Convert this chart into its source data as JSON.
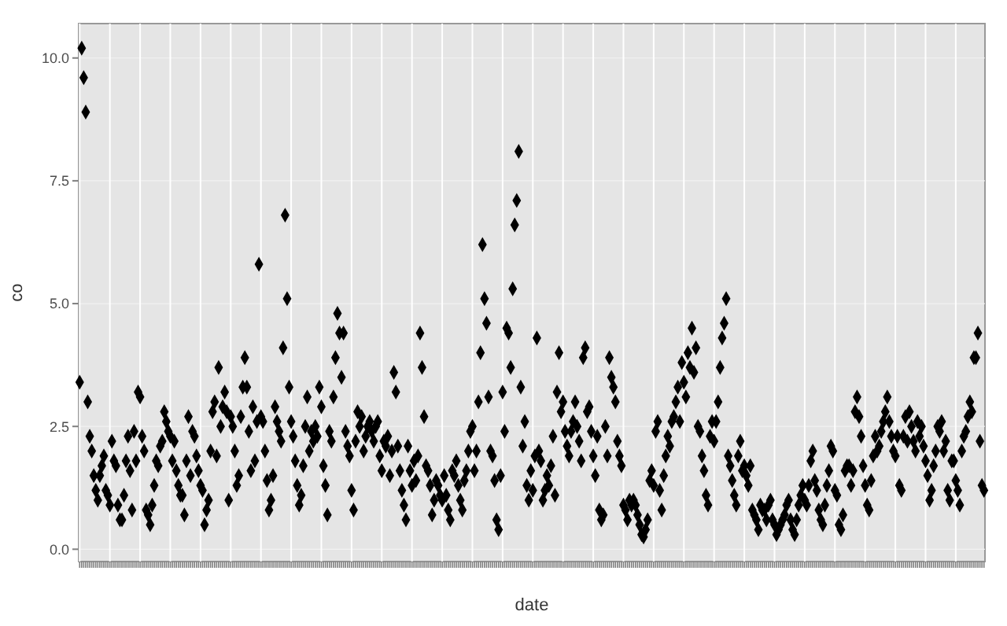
{
  "chart_data": {
    "type": "scatter",
    "xlabel": "date",
    "ylabel": "co",
    "color": "#000000",
    "marker": "diamond",
    "grid": true,
    "tick_labels": "y",
    "ylim": [
      -0.25,
      10.7
    ],
    "yticks": [
      {
        "value": 0,
        "label": "0.0"
      },
      {
        "value": 2.5,
        "label": "2.5"
      },
      {
        "value": 5,
        "label": "5.0"
      },
      {
        "value": 7.5,
        "label": "7.5"
      },
      {
        "value": 10,
        "label": "10.0"
      }
    ],
    "values": [
      3.4,
      10.2,
      9.6,
      8.9,
      3.0,
      2.3,
      2.0,
      1.5,
      1.2,
      1.0,
      1.5,
      1.7,
      1.9,
      1.2,
      1.1,
      0.9,
      2.2,
      1.8,
      1.7,
      0.9,
      0.6,
      0.6,
      1.1,
      1.8,
      2.3,
      1.6,
      0.8,
      2.4,
      1.8,
      3.2,
      3.1,
      2.3,
      2.0,
      0.8,
      0.7,
      0.5,
      0.9,
      1.3,
      1.8,
      1.7,
      2.1,
      2.2,
      2.8,
      2.6,
      2.4,
      2.3,
      1.8,
      2.2,
      1.6,
      1.3,
      1.1,
      1.1,
      0.7,
      1.8,
      2.7,
      1.5,
      2.4,
      2.3,
      1.9,
      1.6,
      1.3,
      1.2,
      0.5,
      0.8,
      1.0,
      2.0,
      2.8,
      3.0,
      1.9,
      3.7,
      2.5,
      2.9,
      3.2,
      2.8,
      1.0,
      2.7,
      2.5,
      2.0,
      1.3,
      1.5,
      2.7,
      3.3,
      3.9,
      3.3,
      2.4,
      1.6,
      2.9,
      1.8,
      2.6,
      5.8,
      2.7,
      2.6,
      2.0,
      1.4,
      0.8,
      1.0,
      1.5,
      2.9,
      2.6,
      2.4,
      2.2,
      4.1,
      6.8,
      5.1,
      3.3,
      2.6,
      2.3,
      1.8,
      1.3,
      0.9,
      1.1,
      1.7,
      2.5,
      3.1,
      2.0,
      2.4,
      2.2,
      2.5,
      2.3,
      3.3,
      2.9,
      1.7,
      1.3,
      0.7,
      2.4,
      2.2,
      3.1,
      3.9,
      4.8,
      4.4,
      3.5,
      4.4,
      2.4,
      2.1,
      1.9,
      1.2,
      0.8,
      2.2,
      2.8,
      2.5,
      2.7,
      2.0,
      2.3,
      2.5,
      2.6,
      2.4,
      2.2,
      2.5,
      2.6,
      1.9,
      1.6,
      2.2,
      2.1,
      2.3,
      1.5,
      2.0,
      3.6,
      3.2,
      2.1,
      1.6,
      1.2,
      0.9,
      0.6,
      2.1,
      1.6,
      1.3,
      1.8,
      1.4,
      1.9,
      4.4,
      3.7,
      2.7,
      1.7,
      1.6,
      1.3,
      0.7,
      1.0,
      1.4,
      1.3,
      1.1,
      1.0,
      1.5,
      1.1,
      0.8,
      0.6,
      1.6,
      1.5,
      1.8,
      1.3,
      1.0,
      0.8,
      1.4,
      1.6,
      2.0,
      2.4,
      2.5,
      1.6,
      2.0,
      3.0,
      4.0,
      6.2,
      5.1,
      4.6,
      3.1,
      2.0,
      1.9,
      1.4,
      0.6,
      0.4,
      1.5,
      3.2,
      2.4,
      4.5,
      4.4,
      3.7,
      5.3,
      6.6,
      7.1,
      8.1,
      3.3,
      2.1,
      2.6,
      1.3,
      1.0,
      1.6,
      1.2,
      1.9,
      4.3,
      2.0,
      1.8,
      1.0,
      1.2,
      1.5,
      1.3,
      1.7,
      2.3,
      1.1,
      3.2,
      4.0,
      2.8,
      3.0,
      2.4,
      2.1,
      1.9,
      2.4,
      2.6,
      3.0,
      2.5,
      2.2,
      1.8,
      3.9,
      4.1,
      2.8,
      2.9,
      2.4,
      1.9,
      1.5,
      2.3,
      0.8,
      0.6,
      0.7,
      2.5,
      1.9,
      3.9,
      3.5,
      3.3,
      3.0,
      2.2,
      1.9,
      1.7,
      0.9,
      0.8,
      0.6,
      1.0,
      0.9,
      1.0,
      0.9,
      0.7,
      0.5,
      0.3,
      0.25,
      0.4,
      0.6,
      1.4,
      1.6,
      1.3,
      2.4,
      2.6,
      1.2,
      0.8,
      1.5,
      1.9,
      2.3,
      2.1,
      2.6,
      2.7,
      3.0,
      3.3,
      2.6,
      3.8,
      3.4,
      3.1,
      4.0,
      3.7,
      4.5,
      3.6,
      4.1,
      2.5,
      2.4,
      1.9,
      1.6,
      1.1,
      0.9,
      2.3,
      2.6,
      2.2,
      2.6,
      3.0,
      3.7,
      4.3,
      4.6,
      5.1,
      1.9,
      1.7,
      1.4,
      1.1,
      0.9,
      1.9,
      2.2,
      1.6,
      1.7,
      1.5,
      1.3,
      1.7,
      0.8,
      0.7,
      0.6,
      0.4,
      0.9,
      0.8,
      0.8,
      0.6,
      0.9,
      1.0,
      0.6,
      0.5,
      0.3,
      0.4,
      0.5,
      0.6,
      0.7,
      0.9,
      1.0,
      0.6,
      0.4,
      0.3,
      0.6,
      0.9,
      1.1,
      1.3,
      1.0,
      0.9,
      1.3,
      1.8,
      2.0,
      1.4,
      1.2,
      0.8,
      0.6,
      0.5,
      0.9,
      1.3,
      1.6,
      2.1,
      2.0,
      1.2,
      1.1,
      0.5,
      0.4,
      0.7,
      1.6,
      1.7,
      1.7,
      1.3,
      1.6,
      2.8,
      3.1,
      2.7,
      2.3,
      1.7,
      1.3,
      0.9,
      0.8,
      1.4,
      1.9,
      2.3,
      2.0,
      2.1,
      2.4,
      2.6,
      2.8,
      3.1,
      2.6,
      2.3,
      2.0,
      1.9,
      2.3,
      1.3,
      1.2,
      2.3,
      2.7,
      2.2,
      2.8,
      2.5,
      2.2,
      2.0,
      2.6,
      2.3,
      2.5,
      2.1,
      1.8,
      1.5,
      1.0,
      1.2,
      1.7,
      2.0,
      2.5,
      2.4,
      2.6,
      2.0,
      2.2,
      1.2,
      1.0,
      1.8,
      1.8,
      1.4,
      1.2,
      0.9,
      2.0,
      2.3,
      2.4,
      2.7,
      3.0,
      2.8,
      3.9,
      3.9,
      4.4,
      2.2,
      1.3,
      1.2
    ]
  }
}
